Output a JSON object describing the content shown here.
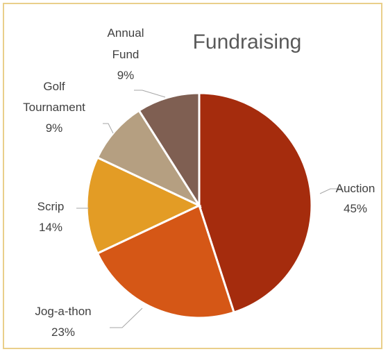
{
  "chart_data": {
    "type": "pie",
    "title": "Fundraising",
    "slices": [
      {
        "label": "Auction",
        "value": 45,
        "percent_label": "45%",
        "color": "#a52c0d"
      },
      {
        "label": "Jog-a-thon",
        "value": 23,
        "percent_label": "23%",
        "color": "#d55716"
      },
      {
        "label": "Scrip",
        "value": 14,
        "percent_label": "14%",
        "color": "#e39c25"
      },
      {
        "label": "Golf Tournament",
        "value": 9,
        "percent_label": "9%",
        "color": "#b59f81"
      },
      {
        "label": "Annual Fund",
        "value": 9,
        "percent_label": "9%",
        "color": "#7f5f52"
      }
    ],
    "legend": "none",
    "data_labels": "outside-with-leader-lines"
  },
  "frame": {
    "border_color": "#e9cf8a"
  }
}
